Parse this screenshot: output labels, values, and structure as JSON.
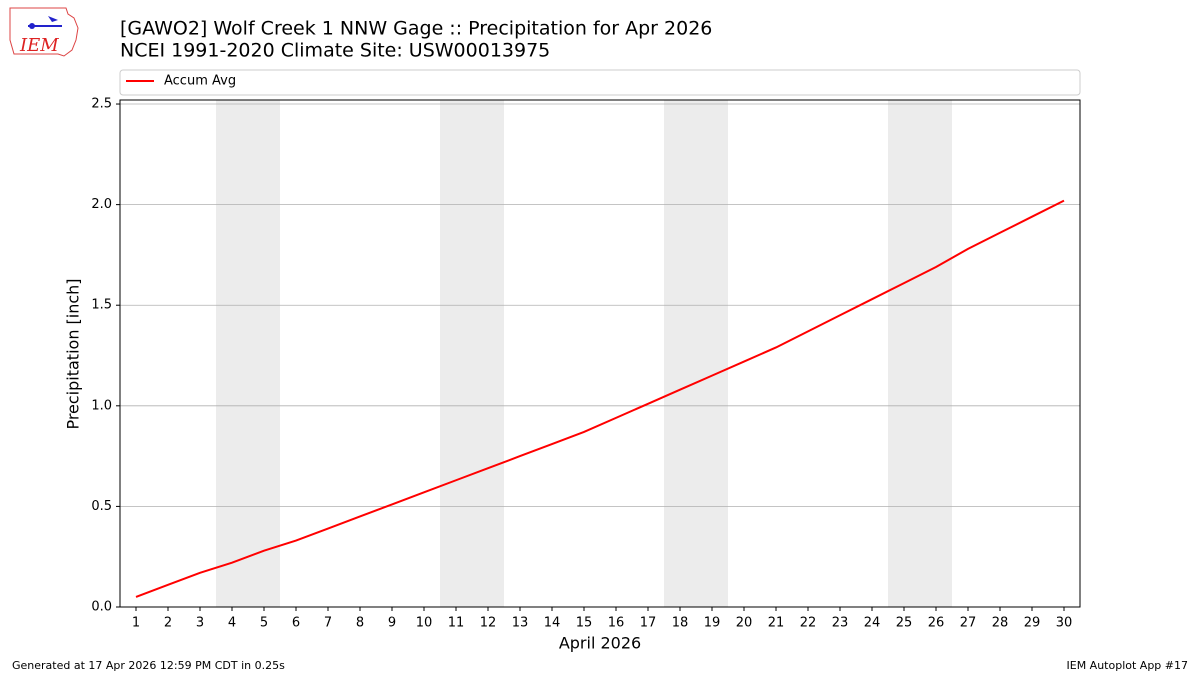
{
  "logo": "IEM",
  "footer": {
    "left": "Generated at 17 Apr 2026 12:59 PM CDT in 0.25s",
    "right": "IEM Autoplot App #17"
  },
  "chart_data": {
    "type": "line",
    "title": "[GAWO2] Wolf Creek 1 NNW Gage :: Precipitation for Apr 2026",
    "subtitle": "NCEI 1991-2020 Climate Site: USW00013975",
    "x_label": "April 2026",
    "y_label": "Precipitation [inch]",
    "x": [
      1,
      2,
      3,
      4,
      5,
      6,
      7,
      8,
      9,
      10,
      11,
      12,
      13,
      14,
      15,
      16,
      17,
      18,
      19,
      20,
      21,
      22,
      23,
      24,
      25,
      26,
      27,
      28,
      29,
      30
    ],
    "series": [
      {
        "name": "Accum Avg",
        "color": "#ff0000",
        "values": [
          0.05,
          0.11,
          0.17,
          0.22,
          0.28,
          0.33,
          0.39,
          0.45,
          0.51,
          0.57,
          0.63,
          0.69,
          0.75,
          0.81,
          0.87,
          0.94,
          1.01,
          1.08,
          1.15,
          1.22,
          1.29,
          1.37,
          1.45,
          1.53,
          1.61,
          1.69,
          1.78,
          1.86,
          1.94,
          2.02
        ]
      }
    ],
    "shaded_spans": [
      [
        3.5,
        5.5
      ],
      [
        10.5,
        12.5
      ],
      [
        17.5,
        19.5
      ],
      [
        24.5,
        26.5
      ]
    ],
    "shade_color": "#ececec",
    "xlim": [
      0.5,
      30.5
    ],
    "xticks": [
      1,
      2,
      3,
      4,
      5,
      6,
      7,
      8,
      9,
      10,
      11,
      12,
      13,
      14,
      15,
      16,
      17,
      18,
      19,
      20,
      21,
      22,
      23,
      24,
      25,
      26,
      27,
      28,
      29,
      30
    ],
    "ylim": [
      0,
      2.52
    ],
    "yticks": [
      {
        "value": 0,
        "label": "0.0"
      },
      0.5,
      {
        "value": 1,
        "label": "1.0"
      },
      1.5,
      {
        "value": 2,
        "label": "2.0"
      },
      2.5
    ],
    "grid": true,
    "legend": "top"
  }
}
